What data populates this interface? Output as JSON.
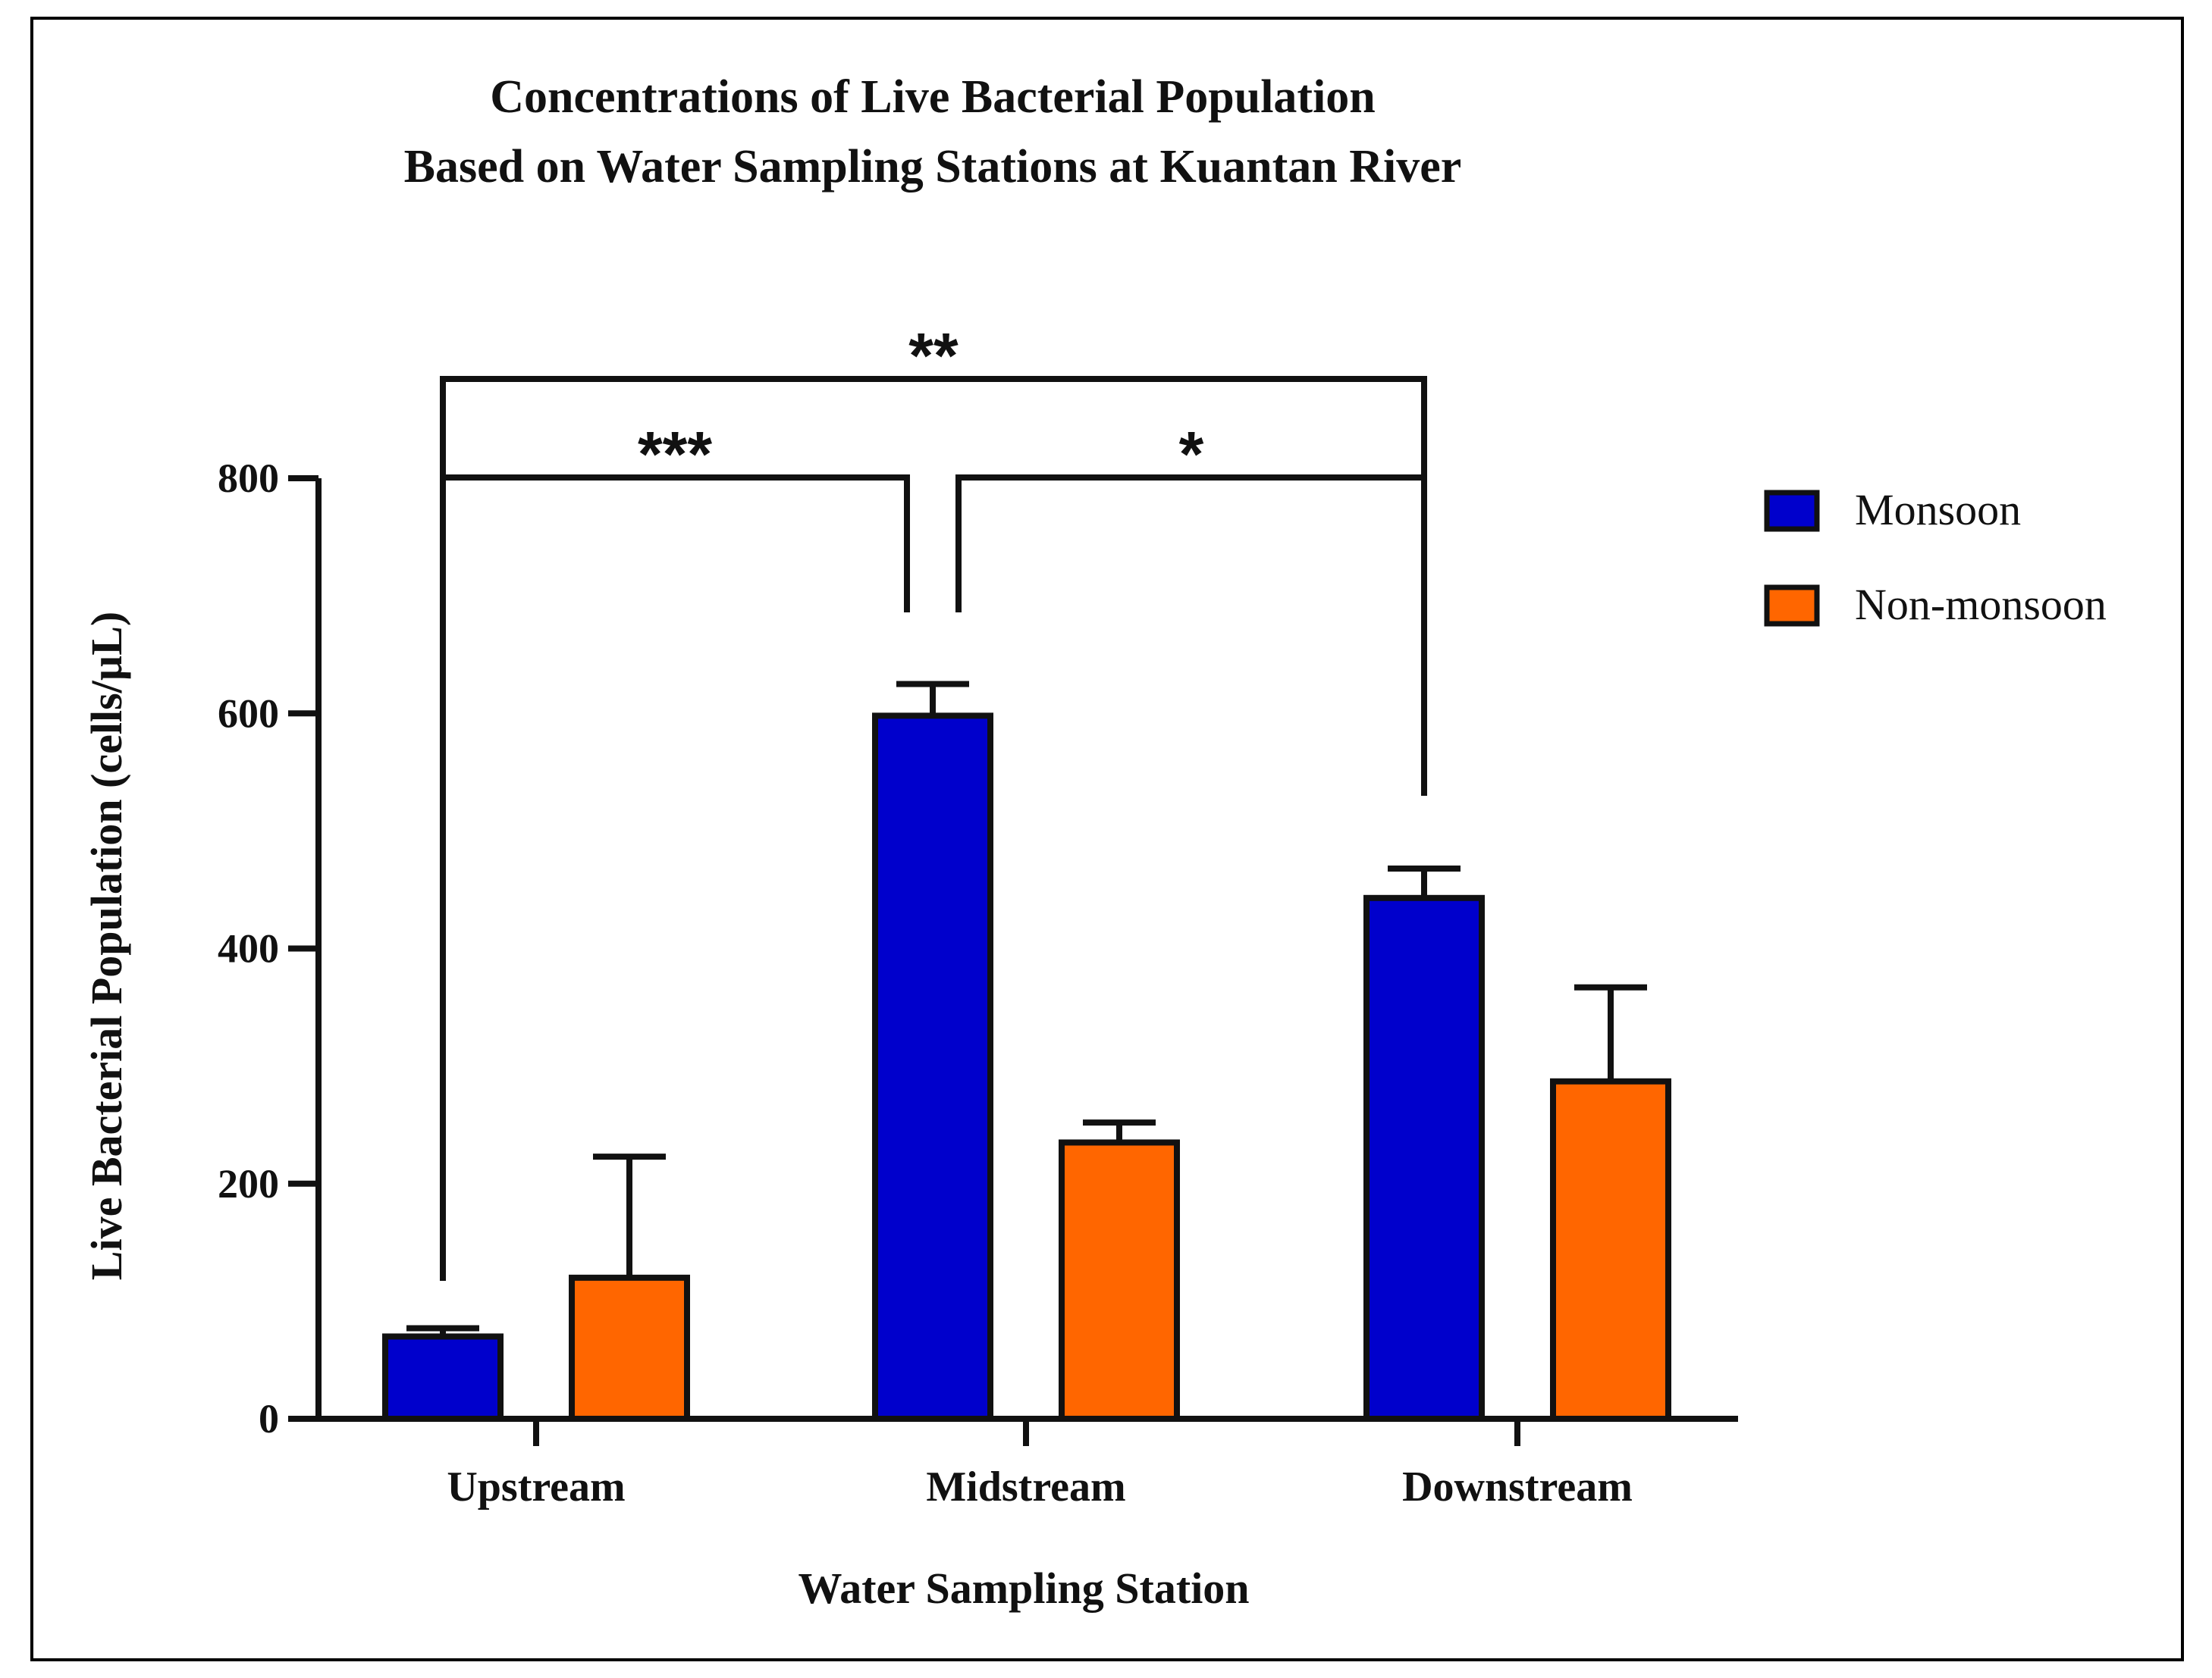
{
  "chart_data": {
    "type": "bar",
    "title_lines": [
      "Concentrations of Live Bacterial Population",
      "Based on Water Sampling Stations at Kuantan River"
    ],
    "xlabel": "Water Sampling Station",
    "ylabel": "Live Bacterial Population (cells/µL)",
    "ylim": [
      0,
      800
    ],
    "yticks": [
      0,
      200,
      400,
      600,
      800
    ],
    "ytick_labels": [
      "0",
      "200",
      "400",
      "600",
      "800"
    ],
    "categories": [
      "Upstream",
      "Midstream",
      "Downstream"
    ],
    "series": [
      {
        "name": "Monsoon",
        "color": "#0000cc",
        "values": [
          70,
          598,
          443
        ],
        "errors": [
          7,
          27,
          25
        ]
      },
      {
        "name": "Non-monsoon",
        "color": "#ff6600",
        "values": [
          120,
          235,
          287
        ],
        "errors": [
          103,
          17,
          80
        ]
      }
    ],
    "legend_position": "right",
    "significance": [
      {
        "label": "**",
        "from_category": "Upstream",
        "to_category": "Downstream"
      },
      {
        "label": "***",
        "from_category": "Upstream",
        "to_category": "Midstream"
      },
      {
        "label": "*",
        "from_category": "Midstream",
        "to_category": "Downstream"
      }
    ]
  }
}
